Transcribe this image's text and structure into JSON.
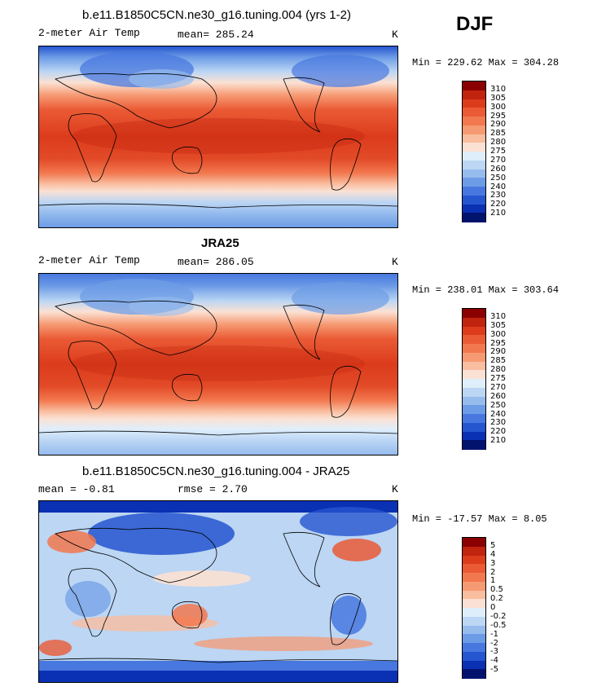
{
  "season": "DJF",
  "panels": [
    {
      "title": "b.e11.B1850C5CN.ne30_g16.tuning.004 (yrs 1-2)",
      "left_label": "2-meter Air Temp",
      "stat_label": "mean= 285.24",
      "units": "K",
      "minmax": "Min = 229.62 Max = 304.28",
      "colorbar": {
        "levels": [
          "310",
          "305",
          "300",
          "295",
          "290",
          "285",
          "280",
          "275",
          "270",
          "260",
          "250",
          "240",
          "230",
          "220",
          "210"
        ],
        "colors": [
          "#8b0000",
          "#c0230e",
          "#dc3c1c",
          "#ea5a35",
          "#f2784f",
          "#f69a73",
          "#f9bd9f",
          "#fbe1d3",
          "#dfeefb",
          "#bcd6f4",
          "#96bcee",
          "#6d9ce6",
          "#4878df",
          "#2555cf",
          "#0a30b4",
          "#02136e"
        ]
      }
    },
    {
      "title": "JRA25",
      "left_label": "2-meter Air Temp",
      "stat_label": "mean= 286.05",
      "units": "K",
      "minmax": "Min = 238.01 Max = 303.64",
      "colorbar": {
        "levels": [
          "310",
          "305",
          "300",
          "295",
          "290",
          "285",
          "280",
          "275",
          "270",
          "260",
          "250",
          "240",
          "230",
          "220",
          "210"
        ],
        "colors": [
          "#8b0000",
          "#c0230e",
          "#dc3c1c",
          "#ea5a35",
          "#f2784f",
          "#f69a73",
          "#f9bd9f",
          "#fbe1d3",
          "#dfeefb",
          "#bcd6f4",
          "#96bcee",
          "#6d9ce6",
          "#4878df",
          "#2555cf",
          "#0a30b4",
          "#02136e"
        ]
      }
    },
    {
      "title": "b.e11.B1850C5CN.ne30_g16.tuning.004 - JRA25",
      "left_label": "mean =   -0.81",
      "stat_label": "rmse =    2.70",
      "units": "K",
      "minmax": "Min = -17.57 Max =    8.05",
      "colorbar": {
        "levels": [
          "5",
          "4",
          "3",
          "2",
          "1",
          "0.5",
          "0.2",
          "0",
          "-0.2",
          "-0.5",
          "-1",
          "-2",
          "-3",
          "-4",
          "-5"
        ],
        "colors": [
          "#8b0000",
          "#c0230e",
          "#dc3c1c",
          "#ea5a35",
          "#f2784f",
          "#f69a73",
          "#f9bd9f",
          "#fbe1d3",
          "#dfeefb",
          "#bcd6f4",
          "#96bcee",
          "#6d9ce6",
          "#4878df",
          "#2555cf",
          "#0a30b4",
          "#02136e"
        ]
      }
    }
  ],
  "chart_data": [
    {
      "type": "heatmap",
      "title": "b.e11.B1850C5CN.ne30_g16.tuning.004 (yrs 1-2)",
      "variable": "2-meter Air Temp",
      "units": "K",
      "mean": 285.24,
      "min": 229.62,
      "max": 304.28,
      "contour_levels": [
        210,
        220,
        230,
        240,
        250,
        260,
        270,
        275,
        280,
        285,
        290,
        295,
        300,
        305,
        310
      ]
    },
    {
      "type": "heatmap",
      "title": "JRA25",
      "variable": "2-meter Air Temp",
      "units": "K",
      "mean": 286.05,
      "min": 238.01,
      "max": 303.64,
      "contour_levels": [
        210,
        220,
        230,
        240,
        250,
        260,
        270,
        275,
        280,
        285,
        290,
        295,
        300,
        305,
        310
      ]
    },
    {
      "type": "heatmap",
      "title": "b.e11.B1850C5CN.ne30_g16.tuning.004 - JRA25",
      "units": "K",
      "mean": -0.81,
      "rmse": 2.7,
      "min": -17.57,
      "max": 8.05,
      "contour_levels": [
        -5,
        -4,
        -3,
        -2,
        -1,
        -0.5,
        -0.2,
        0,
        0.2,
        0.5,
        1,
        2,
        3,
        4,
        5
      ]
    }
  ]
}
